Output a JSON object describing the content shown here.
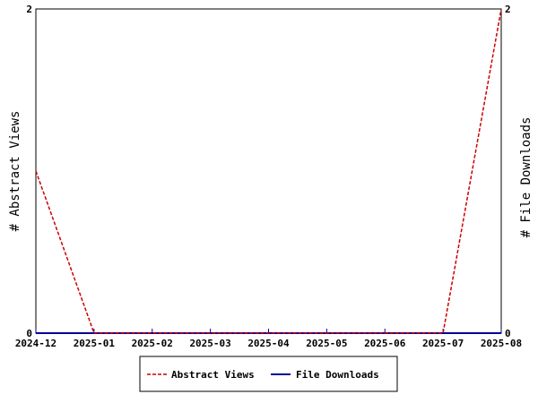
{
  "chart_data": {
    "type": "line",
    "x": [
      "2024-12",
      "2025-01",
      "2025-02",
      "2025-03",
      "2025-04",
      "2025-05",
      "2025-06",
      "2025-07",
      "2025-08"
    ],
    "series": [
      {
        "name": "Abstract Views",
        "axis": "left",
        "color": "#cc0000",
        "style": "dashed",
        "values": [
          1,
          0,
          0,
          0,
          0,
          0,
          0,
          0,
          2
        ]
      },
      {
        "name": "File Downloads",
        "axis": "right",
        "color": "#000099",
        "style": "solid",
        "values": [
          0,
          0,
          0,
          0,
          0,
          0,
          0,
          0,
          0
        ]
      }
    ],
    "ylabel": "# Abstract Views",
    "y2label": "# File Downloads",
    "ylim": [
      0,
      2
    ],
    "y2lim": [
      0,
      2
    ],
    "yticks": [
      "0",
      "2"
    ],
    "y2ticks": [
      "0",
      "2"
    ],
    "grid": false,
    "legend_position": "bottom-center"
  }
}
